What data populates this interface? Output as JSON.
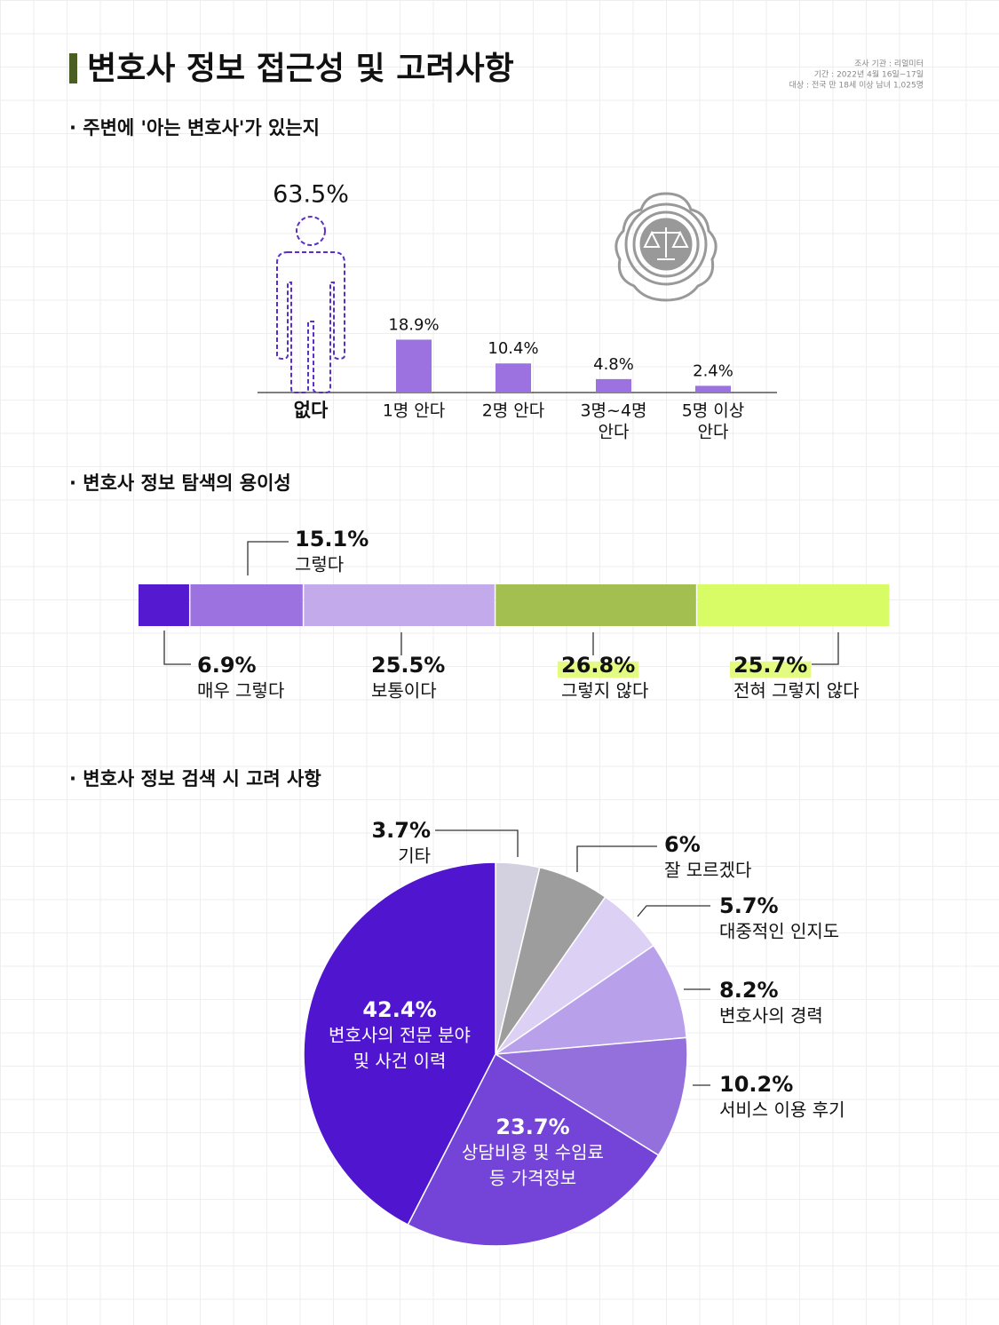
{
  "header": {
    "title": "변호사 정보 접근성 및 고려사항",
    "source": [
      "조사 기관 : 리얼미터",
      "기간 : 2022년 4월 16일~17일",
      "대상 : 전국 만 18세 이상 남녀 1,025명"
    ]
  },
  "chart_data": [
    {
      "type": "bar",
      "title": "· 주변에 '아는 변호사'가 있는지",
      "categories": [
        [
          "없다"
        ],
        [
          "1명 안다"
        ],
        [
          "2명 안다"
        ],
        [
          "3명~4명",
          "안다"
        ],
        [
          "5명 이상",
          "안다"
        ]
      ],
      "values": [
        63.5,
        18.9,
        10.4,
        4.8,
        2.4
      ],
      "value_labels": [
        "63.5%",
        "18.9%",
        "10.4%",
        "4.8%",
        "2.4%"
      ],
      "color": "#9b72e0",
      "icon_color": "#5a2fc8"
    },
    {
      "type": "stacked-bar",
      "title": "· 변호사 정보 탐색의 용이성",
      "categories": [
        "매우 그렇다",
        "그렇다",
        "보통이다",
        "그렇지 않다",
        "전혀 그렇지 않다"
      ],
      "values": [
        6.9,
        15.1,
        25.5,
        26.8,
        25.7
      ],
      "value_labels": [
        "6.9%",
        "15.1%",
        "25.5%",
        "26.8%",
        "25.7%"
      ],
      "colors": [
        "#5519cf",
        "#9b72e0",
        "#c3abeb",
        "#a3bf4f",
        "#d8fc66"
      ]
    },
    {
      "type": "pie",
      "title": "· 변호사 정보 검색 시 고려 사항",
      "categories": [
        [
          "기타"
        ],
        [
          "잘 모르겠다"
        ],
        [
          "대중적인 인지도"
        ],
        [
          "변호사의 경력"
        ],
        [
          "서비스 이용 후기"
        ],
        [
          "상담비용 및 수임료",
          "등 가격정보"
        ],
        [
          "변호사의 전문 분야",
          "및 사건 이력"
        ]
      ],
      "values": [
        3.7,
        6,
        5.7,
        8.2,
        10.2,
        23.7,
        42.4
      ],
      "value_labels": [
        "3.7%",
        "6%",
        "5.7%",
        "8.2%",
        "10.2%",
        "23.7%",
        "42.4%"
      ],
      "colors": [
        "#d3d1df",
        "#9d9d9d",
        "#dcd0f5",
        "#b9a0ea",
        "#9470dd",
        "#7443d8",
        "#5015cf"
      ]
    }
  ]
}
